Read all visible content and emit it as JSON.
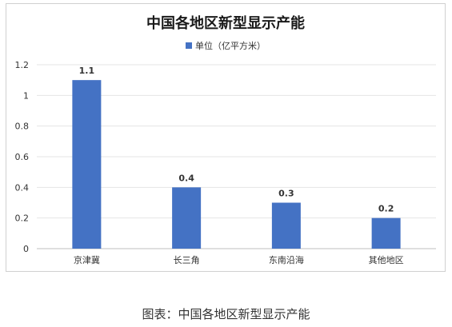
{
  "chart_data": {
    "type": "bar",
    "title": "中国各地区新型显示产能",
    "categories": [
      "京津冀",
      "长三角",
      "东南沿海",
      "其他地区"
    ],
    "series": [
      {
        "name": "单位（亿平方米）",
        "values": [
          1.1,
          0.4,
          0.3,
          0.2
        ],
        "color": "#4472C4"
      }
    ],
    "data_labels": [
      "1.1",
      "0.4",
      "0.3",
      "0.2"
    ],
    "y_ticks": [
      "0",
      "0.2",
      "0.4",
      "0.6",
      "0.8",
      "1",
      "1.2"
    ],
    "ylim": [
      0,
      1.2
    ],
    "grid": true,
    "legend_position": "top-center"
  },
  "caption": "图表：中国各地区新型显示产能"
}
